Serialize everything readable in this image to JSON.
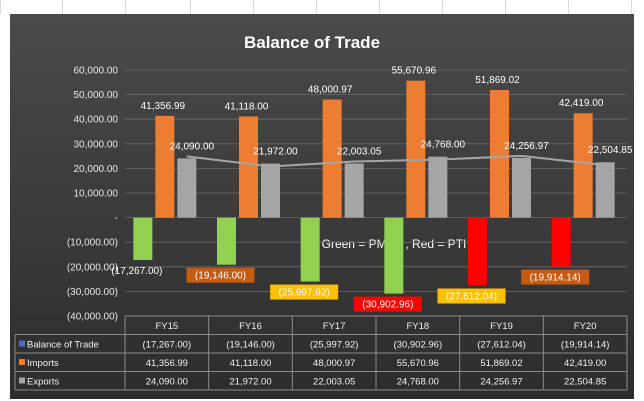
{
  "chart_data": {
    "type": "bar",
    "title": "Balance of Trade",
    "categories": [
      "FY15",
      "FY16",
      "FY17",
      "FY18",
      "FY19",
      "FY20"
    ],
    "series": [
      {
        "name": "Balance of Trade",
        "values": [
          -17267.0,
          -19146.0,
          -25997.92,
          -30902.96,
          -27612.04,
          -19914.14
        ],
        "labels": [
          "(17,267.00)",
          "(19,146.00)",
          "(25,997.92)",
          "(30,902.96)",
          "(27,612.04)",
          "(19,914.14)"
        ],
        "colors": [
          "#92d050",
          "#92d050",
          "#92d050",
          "#92d050",
          "#ff0000",
          "#ff0000"
        ],
        "label_bg": [
          null,
          "#c55a11",
          "#ffc000",
          "#ff0000",
          "#ffc000",
          "#c55a11"
        ],
        "legend_color": "#4472c4"
      },
      {
        "name": "Imports",
        "values": [
          41356.99,
          41118.0,
          48000.97,
          55670.96,
          51869.02,
          42419.0
        ],
        "labels": [
          "41,356.99",
          "41,118.00",
          "48,000.97",
          "55,670.96",
          "51,869.02",
          "42,419.00"
        ],
        "color": "#ed7d31"
      },
      {
        "name": "Exports",
        "values": [
          24090.0,
          21972.0,
          22003.05,
          24768.0,
          24256.97,
          22504.85
        ],
        "labels": [
          "24,090.00",
          "21,972.00",
          "22,003.05",
          "24,768.00",
          "24,256.97",
          "22,504.85"
        ],
        "color": "#a5a5a5"
      }
    ],
    "trendline_of": "Exports",
    "trendline_color": "#a6a6a6",
    "ylim": [
      -40000,
      60000
    ],
    "y_ticks": [
      60000,
      50000,
      40000,
      30000,
      20000,
      10000,
      0,
      -10000,
      -20000,
      -30000,
      -40000
    ],
    "y_tick_labels": [
      "60,000.00",
      "50,000.00",
      "40,000.00",
      "30,000.00",
      "20,000.00",
      "10,000.00",
      "-",
      "(10,000.00)",
      "(20,000.00)",
      "(30,000.00)",
      "(40,000.00)"
    ],
    "annotation": "Green = PMLN , Red = PTI",
    "grid": true,
    "data_table": true
  }
}
